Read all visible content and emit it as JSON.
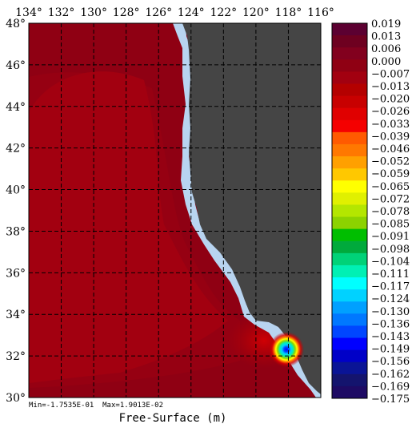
{
  "chart_data": {
    "type": "heatmap",
    "xlabel": "Free-Surface (m)",
    "stats": {
      "min_label": "Min=",
      "min_value": "-1.7535E-01",
      "max_label": "Max=",
      "max_value": "1.9013E-02"
    },
    "x_ticks": [
      "134°",
      "132°",
      "130°",
      "128°",
      "126°",
      "124°",
      "122°",
      "120°",
      "118°",
      "116°"
    ],
    "y_ticks": [
      "48°",
      "46°",
      "44°",
      "42°",
      "40°",
      "38°",
      "36°",
      "34°",
      "32°",
      "30°"
    ],
    "lon_range": [
      -134,
      -116
    ],
    "lat_range": [
      30,
      48
    ],
    "grid": true,
    "land_color": "#454545",
    "coast_color": "#b8d4f0",
    "legend": {
      "placement": "right",
      "labels": [
        "0.019",
        "0.013",
        "0.006",
        "0.000",
        "−0.007",
        "−0.013",
        "−0.020",
        "−0.026",
        "−0.033",
        "−0.039",
        "−0.046",
        "−0.052",
        "−0.059",
        "−0.065",
        "−0.072",
        "−0.078",
        "−0.085",
        "−0.091",
        "−0.098",
        "−0.104",
        "−0.111",
        "−0.117",
        "−0.124",
        "−0.130",
        "−0.136",
        "−0.143",
        "−0.149",
        "−0.156",
        "−0.162",
        "−0.169",
        "−0.175"
      ],
      "colors": [
        "#5c0031",
        "#6e0020",
        "#82001e",
        "#8f0013",
        "#a20010",
        "#b40000",
        "#c80000",
        "#e00000",
        "#f50000",
        "#ff5a00",
        "#ff7800",
        "#ffa000",
        "#ffc800",
        "#ffff00",
        "#e0f000",
        "#b4e600",
        "#8cd200",
        "#00be00",
        "#00aa3c",
        "#00d278",
        "#00f0b4",
        "#00ffff",
        "#00d2ff",
        "#00a0ff",
        "#0078ff",
        "#0046ff",
        "#0000ff",
        "#0000c8",
        "#0a1496",
        "#14146e",
        "#1e0a64"
      ]
    },
    "extreme": {
      "lon": -118.3,
      "lat": 32.6,
      "value": -0.175
    }
  }
}
